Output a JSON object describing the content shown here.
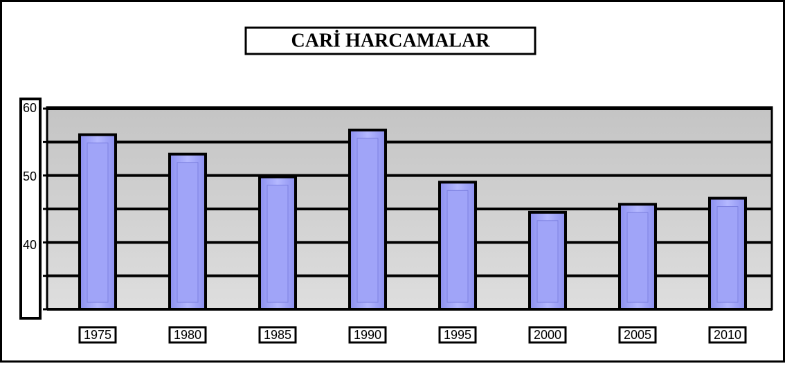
{
  "chart_data": {
    "type": "bar",
    "title": "CARİ HARCAMALAR",
    "categories": [
      "1975",
      "1980",
      "1985",
      "1990",
      "1995",
      "2000",
      "2005",
      "2010"
    ],
    "values": [
      56.1,
      53.2,
      49.8,
      56.8,
      49.0,
      44.5,
      45.7,
      46.6
    ],
    "color": "#a0a4f8",
    "ylim": [
      30,
      60
    ],
    "yticks": [
      60,
      50,
      40
    ],
    "minor_yticks": [
      55,
      45,
      35,
      30
    ],
    "grid": true
  }
}
